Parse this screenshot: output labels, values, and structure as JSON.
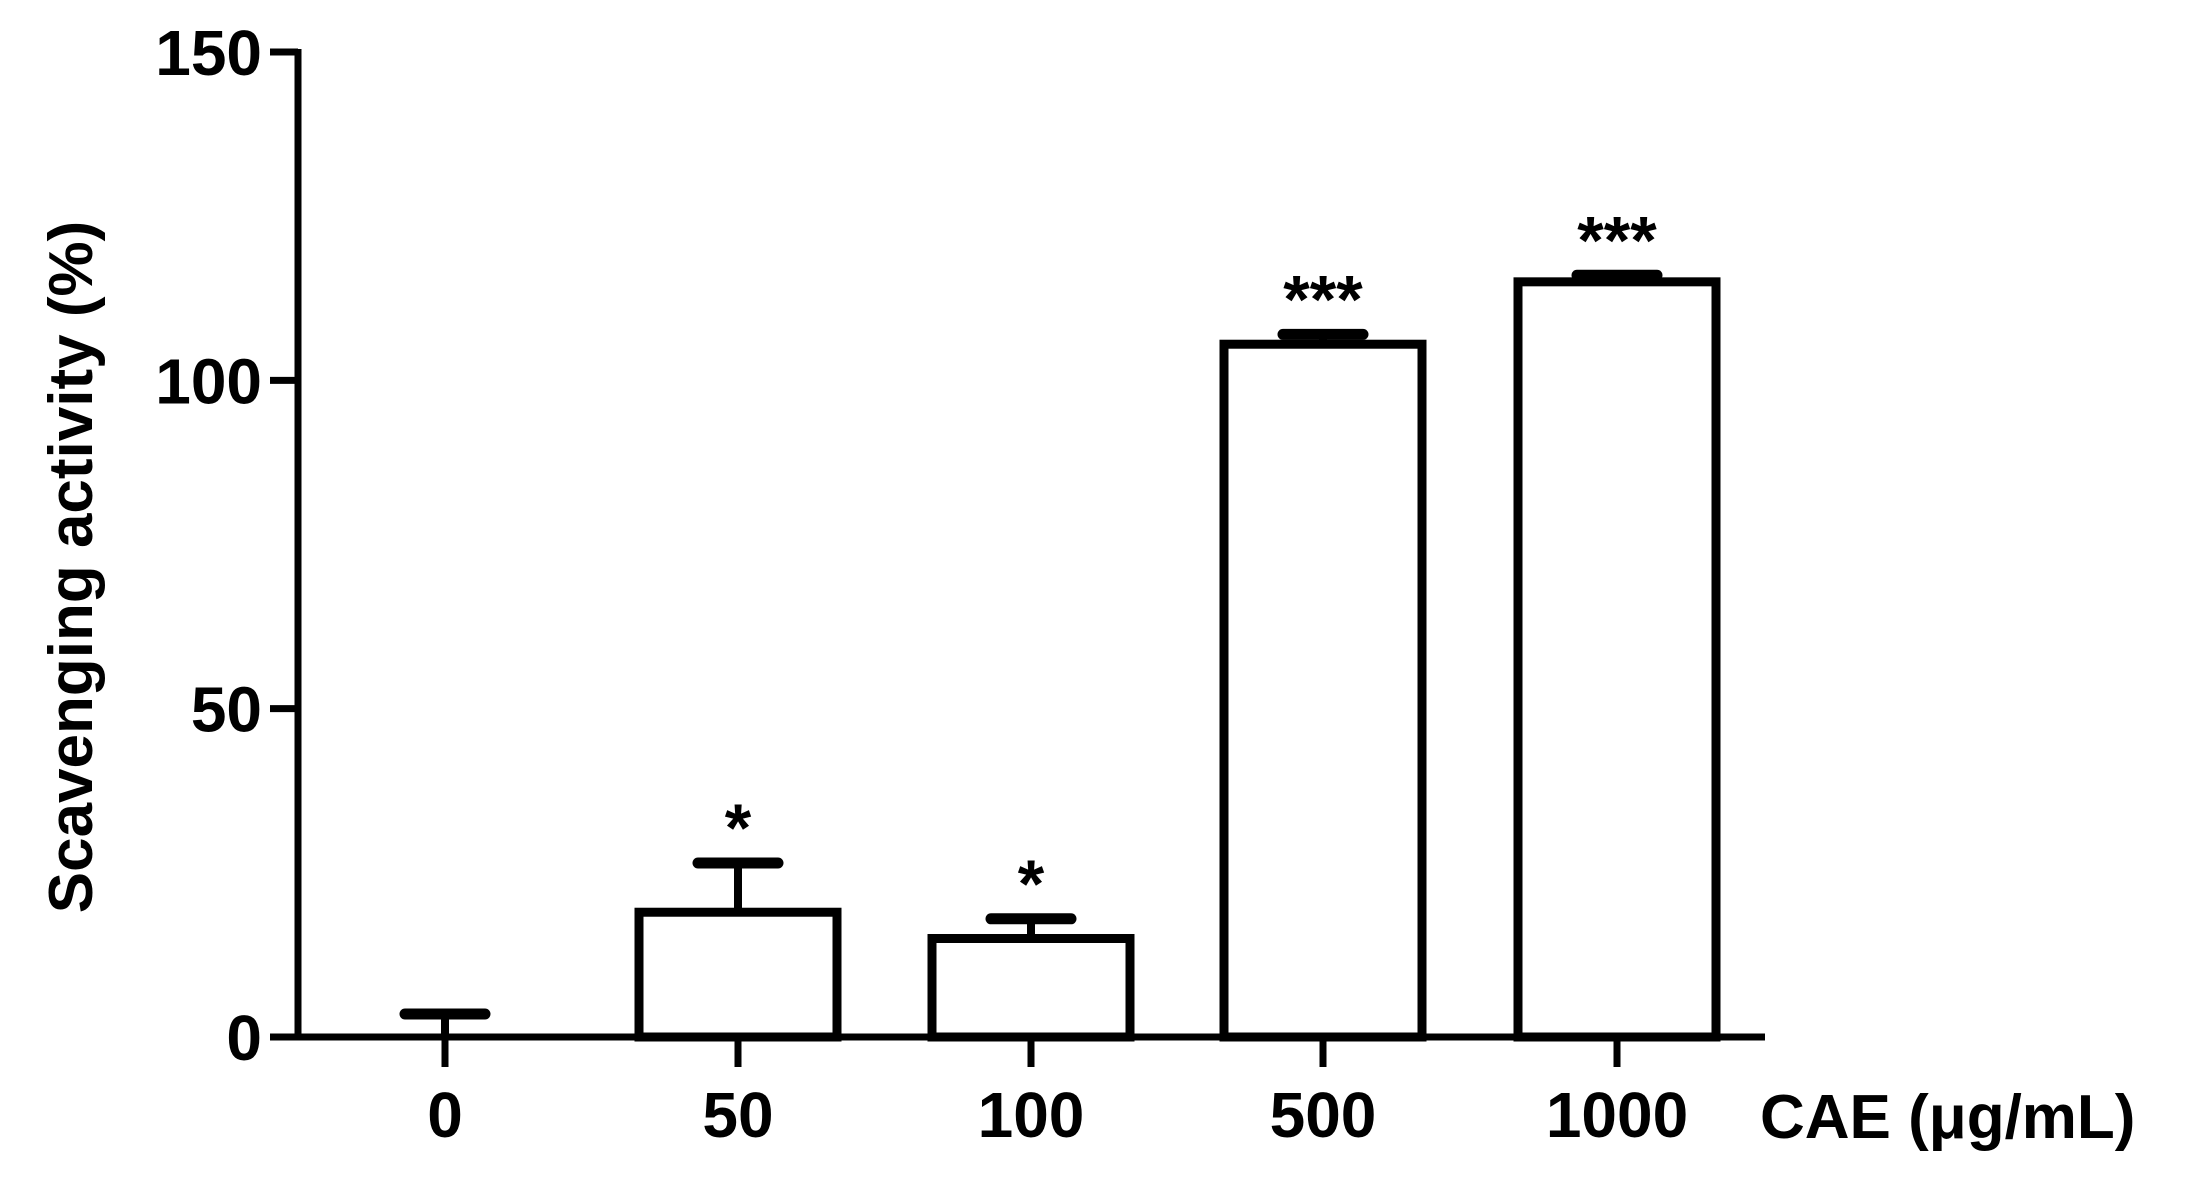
{
  "chart_data": {
    "type": "bar",
    "categories": [
      "0",
      "50",
      "100",
      "500",
      "1000"
    ],
    "series": [
      {
        "values": [
          0,
          19,
          15,
          105.5,
          115
        ],
        "errors": [
          3.5,
          7.5,
          3,
          1.5,
          1
        ],
        "annotations": [
          "",
          "*",
          "*",
          "***",
          "***"
        ]
      }
    ],
    "ylabel": "Scavenging activity (%)",
    "xlabel": "CAE (μg/mL)",
    "ylim": [
      0,
      150
    ],
    "yticks": [
      0,
      50,
      100,
      150
    ],
    "grid": false,
    "bar_fill": "#ffffff",
    "bar_stroke": "#000000"
  }
}
